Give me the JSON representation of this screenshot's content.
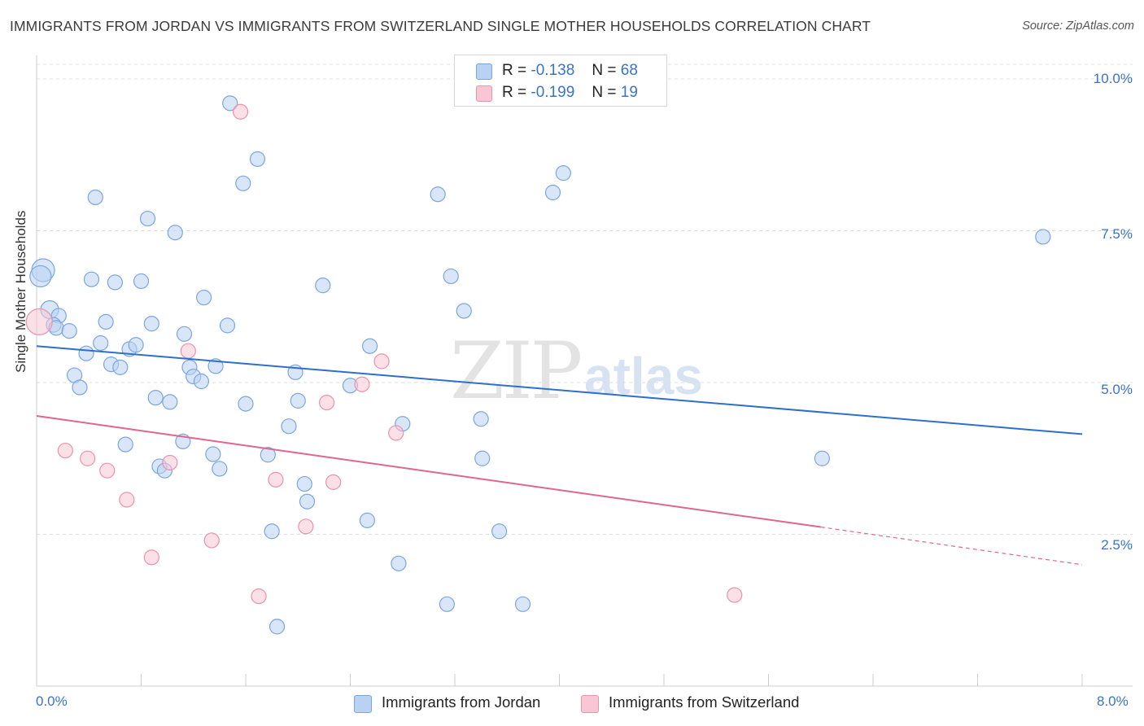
{
  "header": {
    "title": "IMMIGRANTS FROM JORDAN VS IMMIGRANTS FROM SWITZERLAND SINGLE MOTHER HOUSEHOLDS CORRELATION CHART",
    "source": "Source: ZipAtlas.com"
  },
  "watermark": {
    "zip": "ZIP",
    "atlas": "atlas"
  },
  "legend": {
    "jordan": {
      "r_label": "R =",
      "r_value": "-0.138",
      "n_label": "N =",
      "n_value": "68"
    },
    "switzerland": {
      "r_label": "R =",
      "r_value": "-0.199",
      "n_label": "N =",
      "n_value": "19"
    }
  },
  "colors": {
    "jordan_fill": "#b9d2f3",
    "jordan_stroke": "#7aa6e0",
    "jordan_line": "#2f6fcc",
    "switzerland_fill": "#f8c6d4",
    "switzerland_stroke": "#e993ae",
    "switzerland_line": "#e06690",
    "tick_label": "#3a73c8",
    "grid": "#dddddd"
  },
  "chart_data": {
    "type": "scatter",
    "title": "IMMIGRANTS FROM JORDAN VS IMMIGRANTS FROM SWITZERLAND SINGLE MOTHER HOUSEHOLDS CORRELATION CHART",
    "xlabel": "",
    "ylabel": "Single Mother Households",
    "xlim": [
      0,
      8
    ],
    "ylim": [
      0,
      10.5
    ],
    "x_tick_labels": [
      "0.0%",
      "8.0%"
    ],
    "y_ticks": [
      2.5,
      5.0,
      7.5,
      10.0
    ],
    "y_tick_labels": [
      "2.5%",
      "5.0%",
      "7.5%",
      "10.0%"
    ],
    "grid": true,
    "legend_position": "top-center",
    "series": [
      {
        "name": "Immigrants from Jordan",
        "r": -0.138,
        "n": 68,
        "trend": {
          "x": [
            0.0,
            8.0
          ],
          "y": [
            5.6,
            4.15
          ]
        },
        "points": [
          {
            "x": 0.05,
            "y": 6.85,
            "size": 14
          },
          {
            "x": 0.03,
            "y": 6.75,
            "size": 13
          },
          {
            "x": 0.1,
            "y": 6.2,
            "size": 11
          },
          {
            "x": 0.17,
            "y": 6.1,
            "size": 9
          },
          {
            "x": 0.13,
            "y": 5.95,
            "size": 9
          },
          {
            "x": 0.15,
            "y": 5.9,
            "size": 9
          },
          {
            "x": 0.25,
            "y": 5.85,
            "size": 9
          },
          {
            "x": 0.45,
            "y": 8.05,
            "size": 9
          },
          {
            "x": 0.42,
            "y": 6.7,
            "size": 9
          },
          {
            "x": 0.6,
            "y": 6.65,
            "size": 9
          },
          {
            "x": 0.8,
            "y": 6.67,
            "size": 9
          },
          {
            "x": 0.85,
            "y": 7.7,
            "size": 9
          },
          {
            "x": 1.06,
            "y": 7.47,
            "size": 9
          },
          {
            "x": 1.48,
            "y": 9.6,
            "size": 9
          },
          {
            "x": 1.58,
            "y": 8.28,
            "size": 9
          },
          {
            "x": 1.69,
            "y": 8.68,
            "size": 9
          },
          {
            "x": 0.53,
            "y": 6.0,
            "size": 9
          },
          {
            "x": 0.88,
            "y": 5.97,
            "size": 9
          },
          {
            "x": 0.49,
            "y": 5.65,
            "size": 9
          },
          {
            "x": 0.38,
            "y": 5.48,
            "size": 9
          },
          {
            "x": 0.57,
            "y": 5.3,
            "size": 9
          },
          {
            "x": 0.64,
            "y": 5.25,
            "size": 9
          },
          {
            "x": 0.71,
            "y": 5.55,
            "size": 9
          },
          {
            "x": 0.76,
            "y": 5.62,
            "size": 9
          },
          {
            "x": 0.29,
            "y": 5.12,
            "size": 9
          },
          {
            "x": 0.33,
            "y": 4.92,
            "size": 9
          },
          {
            "x": 0.91,
            "y": 4.75,
            "size": 9
          },
          {
            "x": 1.02,
            "y": 4.68,
            "size": 9
          },
          {
            "x": 1.13,
            "y": 5.8,
            "size": 9
          },
          {
            "x": 1.17,
            "y": 5.25,
            "size": 9
          },
          {
            "x": 1.2,
            "y": 5.1,
            "size": 9
          },
          {
            "x": 1.26,
            "y": 5.02,
            "size": 9
          },
          {
            "x": 1.28,
            "y": 6.4,
            "size": 9
          },
          {
            "x": 1.37,
            "y": 5.27,
            "size": 9
          },
          {
            "x": 1.46,
            "y": 5.94,
            "size": 9
          },
          {
            "x": 1.6,
            "y": 4.65,
            "size": 9
          },
          {
            "x": 0.68,
            "y": 3.98,
            "size": 9
          },
          {
            "x": 0.94,
            "y": 3.62,
            "size": 9
          },
          {
            "x": 0.98,
            "y": 3.55,
            "size": 9
          },
          {
            "x": 1.12,
            "y": 4.03,
            "size": 9
          },
          {
            "x": 1.35,
            "y": 3.82,
            "size": 9
          },
          {
            "x": 1.4,
            "y": 3.58,
            "size": 9
          },
          {
            "x": 1.77,
            "y": 3.81,
            "size": 9
          },
          {
            "x": 1.93,
            "y": 4.28,
            "size": 9
          },
          {
            "x": 1.98,
            "y": 5.17,
            "size": 9
          },
          {
            "x": 2.0,
            "y": 4.7,
            "size": 9
          },
          {
            "x": 2.05,
            "y": 3.33,
            "size": 9
          },
          {
            "x": 2.07,
            "y": 3.04,
            "size": 9
          },
          {
            "x": 1.8,
            "y": 2.55,
            "size": 9
          },
          {
            "x": 1.84,
            "y": 0.98,
            "size": 9
          },
          {
            "x": 2.19,
            "y": 6.6,
            "size": 9
          },
          {
            "x": 2.4,
            "y": 4.95,
            "size": 9
          },
          {
            "x": 2.53,
            "y": 2.73,
            "size": 9
          },
          {
            "x": 2.55,
            "y": 5.6,
            "size": 9
          },
          {
            "x": 2.8,
            "y": 4.32,
            "size": 9
          },
          {
            "x": 2.77,
            "y": 2.02,
            "size": 9
          },
          {
            "x": 3.07,
            "y": 8.1,
            "size": 9
          },
          {
            "x": 3.17,
            "y": 6.75,
            "size": 9
          },
          {
            "x": 3.27,
            "y": 6.18,
            "size": 9
          },
          {
            "x": 3.4,
            "y": 4.4,
            "size": 9
          },
          {
            "x": 3.41,
            "y": 3.75,
            "size": 9
          },
          {
            "x": 3.14,
            "y": 1.35,
            "size": 9
          },
          {
            "x": 3.54,
            "y": 2.55,
            "size": 9
          },
          {
            "x": 3.72,
            "y": 1.35,
            "size": 9
          },
          {
            "x": 3.95,
            "y": 8.13,
            "size": 9
          },
          {
            "x": 4.03,
            "y": 8.45,
            "size": 9
          },
          {
            "x": 6.01,
            "y": 3.75,
            "size": 9
          },
          {
            "x": 7.7,
            "y": 7.4,
            "size": 9
          }
        ]
      },
      {
        "name": "Immigrants from Switzerland",
        "r": -0.199,
        "n": 19,
        "trend": {
          "x": [
            0.0,
            6.0
          ],
          "y": [
            4.45,
            2.62
          ]
        },
        "trend_dashed": {
          "x": [
            6.0,
            8.0
          ],
          "y": [
            2.62,
            2.0
          ]
        },
        "points": [
          {
            "x": 0.02,
            "y": 6.0,
            "size": 16
          },
          {
            "x": 0.22,
            "y": 3.88,
            "size": 9
          },
          {
            "x": 0.39,
            "y": 3.75,
            "size": 9
          },
          {
            "x": 0.54,
            "y": 3.55,
            "size": 9
          },
          {
            "x": 0.69,
            "y": 3.07,
            "size": 9
          },
          {
            "x": 0.88,
            "y": 2.12,
            "size": 9
          },
          {
            "x": 1.02,
            "y": 3.68,
            "size": 9
          },
          {
            "x": 1.16,
            "y": 5.52,
            "size": 9
          },
          {
            "x": 1.34,
            "y": 2.4,
            "size": 9
          },
          {
            "x": 1.56,
            "y": 9.46,
            "size": 9
          },
          {
            "x": 1.7,
            "y": 1.48,
            "size": 9
          },
          {
            "x": 1.83,
            "y": 3.4,
            "size": 9
          },
          {
            "x": 2.06,
            "y": 2.63,
            "size": 9
          },
          {
            "x": 2.22,
            "y": 4.67,
            "size": 9
          },
          {
            "x": 2.27,
            "y": 3.36,
            "size": 9
          },
          {
            "x": 2.49,
            "y": 4.97,
            "size": 9
          },
          {
            "x": 2.64,
            "y": 5.35,
            "size": 9
          },
          {
            "x": 2.75,
            "y": 4.17,
            "size": 9
          },
          {
            "x": 5.34,
            "y": 1.5,
            "size": 9
          }
        ]
      }
    ]
  },
  "bottom_legend": {
    "jordan": "Immigrants from Jordan",
    "switzerland": "Immigrants from Switzerland"
  },
  "axes": {
    "y_title": "Single Mother Households",
    "y_ticks": [
      "2.5%",
      "5.0%",
      "7.5%",
      "10.0%"
    ],
    "x_min_label": "0.0%",
    "x_max_label": "8.0%"
  }
}
